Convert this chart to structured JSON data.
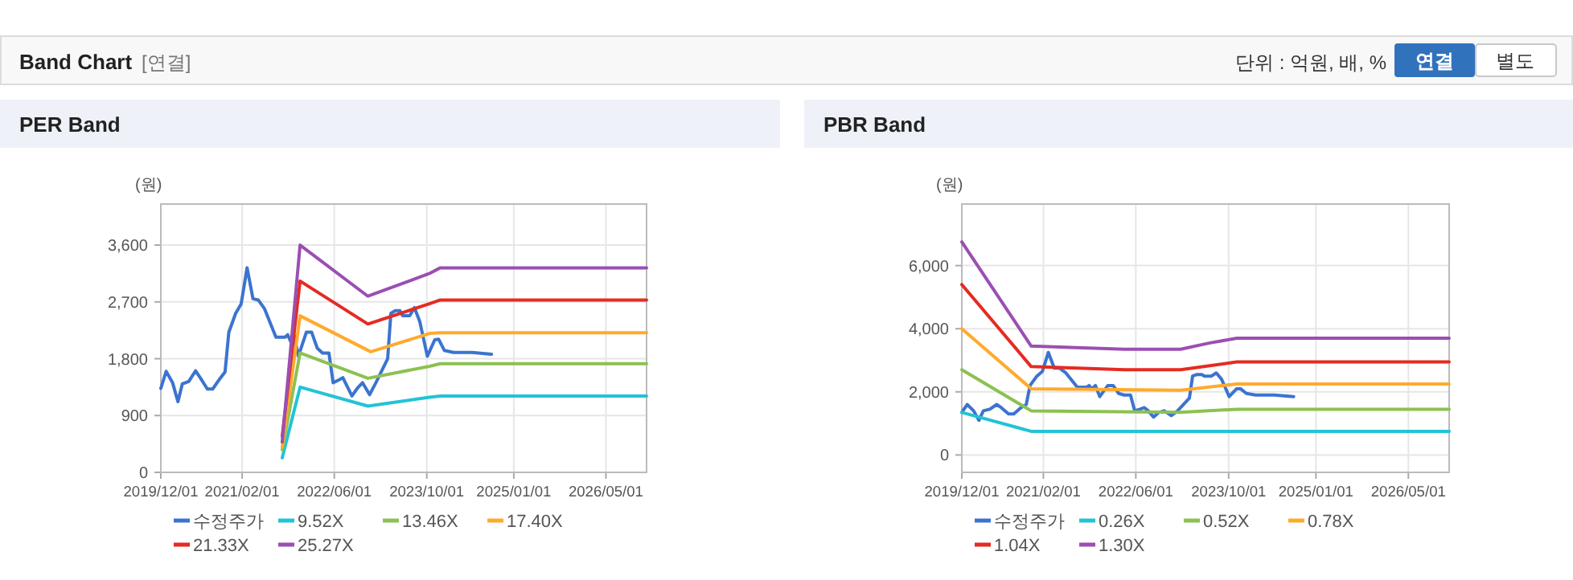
{
  "chart_data": [
    {
      "type": "other",
      "title": "Band Chart",
      "subtitle": "[연결]",
      "annotations": [
        "단위 : 억원, 배, %",
        "연결",
        "별도"
      ]
    },
    {
      "type": "line",
      "title": "PER Band",
      "ylabel": "(원)",
      "grid": true,
      "legend": "bottom",
      "xlim": [
        "2019-12-01",
        "2026-12-01"
      ],
      "xticks": [
        {
          "value": "2019-12-01",
          "label": "2019/12/01"
        },
        {
          "value": "2021-02-01",
          "label": "2021/02/01"
        },
        {
          "value": "2022-06-01",
          "label": "2022/06/01"
        },
        {
          "value": "2023-10-01",
          "label": "2023/10/01"
        },
        {
          "value": "2025-01-01",
          "label": "2025/01/01"
        },
        {
          "value": "2026-05-01",
          "label": "2026/05/01"
        }
      ],
      "ylim": [
        0,
        4250
      ],
      "yticks": [
        {
          "value": 0,
          "label": "0"
        },
        {
          "value": 900,
          "label": "900"
        },
        {
          "value": 1800,
          "label": "1,800"
        },
        {
          "value": 2700,
          "label": "2,700"
        },
        {
          "value": 3600,
          "label": "3,600"
        }
      ],
      "series": [
        {
          "name": "수정주가",
          "color": "#3b74cf",
          "x": [
            "2019-12-01",
            "2019-12-29",
            "2020-02-01",
            "2020-02-29",
            "2020-03-23",
            "2020-04-26",
            "2020-06-01",
            "2020-06-25",
            "2020-08-02",
            "2020-08-30",
            "2020-10-06",
            "2020-11-03",
            "2020-11-23",
            "2020-12-29",
            "2021-01-27",
            "2021-02-27",
            "2021-03-30",
            "2021-04-27",
            "2021-05-30",
            "2021-07-29",
            "2021-09-15",
            "2021-09-29",
            "2021-10-13",
            "2021-11-01",
            "2021-11-24",
            "2022-01-05",
            "2022-02-02",
            "2022-03-03",
            "2022-03-31",
            "2022-05-04",
            "2022-05-26",
            "2022-06-23",
            "2022-07-16",
            "2022-08-05",
            "2022-09-02",
            "2022-09-30",
            "2022-10-28",
            "2022-12-04",
            "2023-01-06",
            "2023-03-09",
            "2023-03-26",
            "2023-04-18",
            "2023-05-13",
            "2023-05-27",
            "2023-07-03",
            "2023-07-28",
            "2023-08-25",
            "2023-10-04",
            "2023-11-12",
            "2023-12-02",
            "2024-01-02",
            "2024-02-19",
            "2024-05-27",
            "2024-09-06"
          ],
          "values": [
            1330,
            1600,
            1420,
            1120,
            1400,
            1440,
            1610,
            1500,
            1320,
            1320,
            1480,
            1590,
            2220,
            2520,
            2670,
            3240,
            2750,
            2730,
            2590,
            2140,
            2140,
            2180,
            2080,
            2180,
            1840,
            2220,
            2220,
            1970,
            1890,
            1890,
            1420,
            1460,
            1500,
            1380,
            1210,
            1330,
            1420,
            1230,
            1420,
            1800,
            2520,
            2560,
            2560,
            2480,
            2480,
            2610,
            2390,
            1840,
            2100,
            2110,
            1930,
            1900,
            1900,
            1870
          ]
        },
        {
          "name": "9.52X",
          "color": "#22c3d6",
          "x": [
            "2021-08-31",
            "2021-12-03",
            "2022-11-25",
            "2023-10-15",
            "2023-12-11",
            "2026-12-01"
          ],
          "values": [
            230,
            1350,
            1050,
            1190,
            1210,
            1210
          ]
        },
        {
          "name": "13.46X",
          "color": "#8cc152",
          "x": [
            "2021-08-31",
            "2021-12-03",
            "2022-11-25",
            "2023-10-15",
            "2023-12-11",
            "2026-12-01"
          ],
          "values": [
            360,
            1890,
            1490,
            1680,
            1720,
            1720
          ]
        },
        {
          "name": "17.40X",
          "color": "#ffaa2e",
          "x": [
            "2021-08-31",
            "2021-12-03",
            "2022-12-10",
            "2023-10-15",
            "2023-12-11",
            "2026-12-01"
          ],
          "values": [
            400,
            2480,
            1910,
            2200,
            2210,
            2210
          ]
        },
        {
          "name": "21.33X",
          "color": "#e52b22",
          "x": [
            "2021-08-31",
            "2021-12-03",
            "2022-11-25",
            "2023-10-15",
            "2023-12-11",
            "2026-12-01"
          ],
          "values": [
            570,
            3030,
            2350,
            2670,
            2730,
            2730
          ]
        },
        {
          "name": "25.27X",
          "color": "#9a4fb2",
          "x": [
            "2021-08-31",
            "2021-12-03",
            "2022-11-25",
            "2023-10-15",
            "2023-12-11",
            "2026-12-01"
          ],
          "values": [
            480,
            3600,
            2790,
            3150,
            3240,
            3240
          ]
        }
      ]
    },
    {
      "type": "line",
      "title": "PBR Band",
      "ylabel": "(원)",
      "grid": true,
      "legend": "bottom",
      "xlim": [
        "2019-12-01",
        "2026-12-01"
      ],
      "xticks": [
        {
          "value": "2019-12-01",
          "label": "2019/12/01"
        },
        {
          "value": "2021-02-01",
          "label": "2021/02/01"
        },
        {
          "value": "2022-06-01",
          "label": "2022/06/01"
        },
        {
          "value": "2023-10-01",
          "label": "2023/10/01"
        },
        {
          "value": "2025-01-01",
          "label": "2025/01/01"
        },
        {
          "value": "2026-05-01",
          "label": "2026/05/01"
        }
      ],
      "ylim": [
        -550,
        7950
      ],
      "yticks": [
        {
          "value": 0,
          "label": "0"
        },
        {
          "value": 2000,
          "label": "2,000"
        },
        {
          "value": 4000,
          "label": "4,000"
        },
        {
          "value": 6000,
          "label": "6,000"
        }
      ],
      "series": [
        {
          "name": "수정주가",
          "color": "#3b74cf",
          "x": [
            "2019-12-01",
            "2019-12-29",
            "2020-02-01",
            "2020-02-29",
            "2020-03-23",
            "2020-04-26",
            "2020-06-01",
            "2020-06-25",
            "2020-08-02",
            "2020-08-30",
            "2020-10-06",
            "2020-11-03",
            "2020-11-23",
            "2020-12-29",
            "2021-01-27",
            "2021-02-27",
            "2021-03-30",
            "2021-04-27",
            "2021-05-30",
            "2021-07-29",
            "2021-09-15",
            "2021-09-29",
            "2021-10-13",
            "2021-11-01",
            "2021-11-24",
            "2022-01-05",
            "2022-02-02",
            "2022-03-03",
            "2022-03-31",
            "2022-05-04",
            "2022-05-26",
            "2022-06-23",
            "2022-07-16",
            "2022-08-05",
            "2022-09-02",
            "2022-09-30",
            "2022-10-28",
            "2022-12-04",
            "2023-01-06",
            "2023-03-09",
            "2023-03-26",
            "2023-04-18",
            "2023-05-13",
            "2023-05-27",
            "2023-07-03",
            "2023-07-28",
            "2023-08-25",
            "2023-10-04",
            "2023-11-12",
            "2023-12-02",
            "2024-01-02",
            "2024-02-19",
            "2024-05-27",
            "2024-09-06"
          ],
          "values": [
            1350,
            1600,
            1400,
            1100,
            1400,
            1450,
            1600,
            1500,
            1300,
            1300,
            1500,
            1600,
            2200,
            2500,
            2650,
            3250,
            2750,
            2750,
            2600,
            2150,
            2150,
            2200,
            2100,
            2200,
            1850,
            2200,
            2200,
            1950,
            1900,
            1900,
            1400,
            1450,
            1500,
            1400,
            1200,
            1350,
            1400,
            1250,
            1400,
            1800,
            2500,
            2550,
            2550,
            2500,
            2500,
            2600,
            2400,
            1850,
            2100,
            2100,
            1950,
            1900,
            1900,
            1850
          ]
        },
        {
          "name": "0.26X",
          "color": "#22c3d6",
          "x": [
            "2019-12-01",
            "2020-11-29",
            "2023-06-01",
            "2023-06-10",
            "2026-12-01"
          ],
          "values": [
            1350,
            750,
            750,
            750,
            750
          ]
        },
        {
          "name": "0.52X",
          "color": "#8cc152",
          "x": [
            "2019-12-01",
            "2020-11-29",
            "2023-01-22",
            "2023-11-13",
            "2026-12-01"
          ],
          "values": [
            2700,
            1400,
            1350,
            1450,
            1450
          ]
        },
        {
          "name": "0.78X",
          "color": "#ffaa2e",
          "x": [
            "2019-12-01",
            "2020-11-29",
            "2023-01-22",
            "2023-11-13",
            "2026-12-01"
          ],
          "values": [
            4000,
            2100,
            2050,
            2250,
            2250
          ]
        },
        {
          "name": "1.04X",
          "color": "#e52b22",
          "x": [
            "2019-12-01",
            "2020-11-29",
            "2022-04-03",
            "2023-01-22",
            "2023-11-13",
            "2026-12-01"
          ],
          "values": [
            5400,
            2800,
            2700,
            2700,
            2950,
            2950
          ]
        },
        {
          "name": "1.30X",
          "color": "#9a4fb2",
          "x": [
            "2019-12-01",
            "2020-11-29",
            "2021-07-26",
            "2022-04-03",
            "2023-01-22",
            "2023-06-25",
            "2023-11-13",
            "2026-12-01"
          ],
          "values": [
            6750,
            3450,
            3400,
            3350,
            3350,
            3550,
            3700,
            3700
          ]
        }
      ]
    }
  ]
}
